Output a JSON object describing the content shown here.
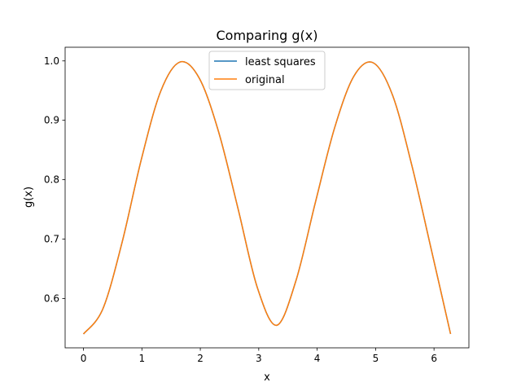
{
  "chart_data": {
    "type": "line",
    "title": "Comparing g(x)",
    "xlabel": "x",
    "ylabel": "g(x)",
    "xlim": [
      -0.314,
      6.597
    ],
    "ylim": [
      0.517,
      1.023
    ],
    "xticks": [
      0,
      1,
      2,
      3,
      4,
      5,
      6
    ],
    "xtick_labels": [
      "0",
      "1",
      "2",
      "3",
      "4",
      "5",
      "6"
    ],
    "yticks": [
      0.6,
      0.7,
      0.8,
      0.9,
      1.0
    ],
    "ytick_labels": [
      "0.6",
      "0.7",
      "0.8",
      "0.9",
      "1.0"
    ],
    "grid": false,
    "legend_position": "top-center",
    "x": [
      0.0,
      0.3307,
      0.6614,
      0.9921,
      1.3228,
      1.6535,
      1.9842,
      2.3149,
      2.6456,
      2.9762,
      3.3069,
      3.6376,
      3.9683,
      4.299,
      4.6297,
      4.9604,
      5.2911,
      5.6218,
      5.9525,
      6.2832
    ],
    "series": [
      {
        "name": "least squares",
        "color": "#1f77b4",
        "values": [
          0.5403,
          0.5823,
          0.6947,
          0.8349,
          0.9491,
          0.9982,
          0.9705,
          0.8799,
          0.7513,
          0.6183,
          0.5549,
          0.6303,
          0.7614,
          0.8875,
          0.9745,
          0.9968,
          0.9421,
          0.8235,
          0.6828,
          0.5403
        ]
      },
      {
        "name": "original",
        "color": "#ff7f0e",
        "values": [
          0.5403,
          0.5823,
          0.6947,
          0.8349,
          0.9491,
          0.9982,
          0.9705,
          0.8799,
          0.7513,
          0.6183,
          0.5549,
          0.6303,
          0.7614,
          0.8875,
          0.9745,
          0.9968,
          0.9421,
          0.8235,
          0.6828,
          0.5403
        ]
      }
    ]
  }
}
